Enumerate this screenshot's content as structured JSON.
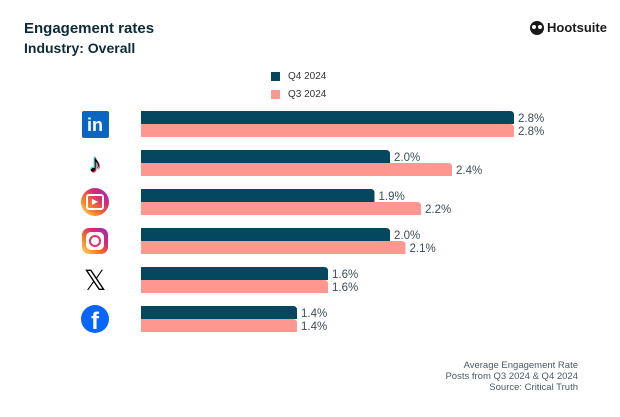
{
  "header": {
    "title": "Engagement rates",
    "subtitle": "Industry: Overall",
    "brand": "Hootsuite"
  },
  "chart_data": {
    "type": "bar",
    "orientation": "horizontal",
    "categories": [
      "LinkedIn",
      "TikTok",
      "Instagram Reels",
      "Instagram",
      "X",
      "Facebook"
    ],
    "category_icons": [
      "linkedin-icon",
      "tiktok-icon",
      "instagram-reels-icon",
      "instagram-icon",
      "x-icon",
      "facebook-icon"
    ],
    "series": [
      {
        "name": "Q4 2024",
        "color": "#05475e",
        "values": [
          2.8,
          2.0,
          1.9,
          2.0,
          1.6,
          1.4
        ],
        "labels": [
          "2.8%",
          "2.0%",
          "1.9%",
          "2.0%",
          "1.6%",
          "1.4%"
        ]
      },
      {
        "name": "Q3 2024",
        "color": "#ff9791",
        "values": [
          2.8,
          2.4,
          2.2,
          2.1,
          1.6,
          1.4
        ],
        "labels": [
          "2.8%",
          "2.4%",
          "2.2%",
          "2.1%",
          "1.6%",
          "1.4%"
        ]
      }
    ],
    "legend": "top-center",
    "grid": false,
    "unit": "%"
  },
  "footer": {
    "line1": "Average Engagement Rate",
    "line2": "Posts from Q3 2024 & Q4 2024",
    "line3": "Source: Critical Truth"
  }
}
